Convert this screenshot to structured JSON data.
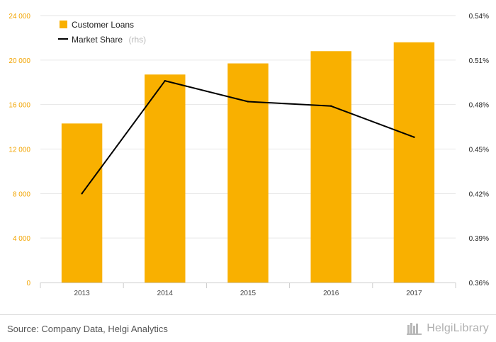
{
  "colors": {
    "bar": "#f9b000",
    "line": "#000000",
    "grid": "#e6e6e6",
    "left_axis_text": "#f2a400"
  },
  "chart_data": {
    "type": "bar",
    "categories": [
      "2013",
      "2014",
      "2015",
      "2016",
      "2017"
    ],
    "series": [
      {
        "name": "Customer Loans",
        "type": "bar",
        "axis": "left",
        "values": [
          14300,
          18700,
          19700,
          20800,
          21600
        ]
      },
      {
        "name": "Market Share",
        "type": "line",
        "axis": "right",
        "values": [
          0.42,
          0.496,
          0.482,
          0.479,
          0.458
        ]
      }
    ],
    "y_left": {
      "min": 0,
      "max": 24000,
      "ticks": [
        0,
        4000,
        8000,
        12000,
        16000,
        20000,
        24000
      ],
      "tick_labels": [
        "0",
        "4 000",
        "8 000",
        "12 000",
        "16 000",
        "20 000",
        "24 000"
      ]
    },
    "y_right": {
      "min": 0.36,
      "max": 0.54,
      "ticks": [
        0.36,
        0.39,
        0.42,
        0.45,
        0.48,
        0.51,
        0.54
      ],
      "tick_labels": [
        "0.36%",
        "0.39%",
        "0.42%",
        "0.45%",
        "0.48%",
        "0.51%",
        "0.54%"
      ]
    },
    "legend": {
      "placement": "top-left",
      "items": [
        "Customer Loans",
        "Market Share"
      ],
      "line_suffix": "(rhs)"
    },
    "grid": true
  },
  "footer": {
    "source": "Source: Company Data, Helgi Analytics",
    "brand": "HelgiLibrary",
    "brand_icon": "bookshelf-icon"
  }
}
